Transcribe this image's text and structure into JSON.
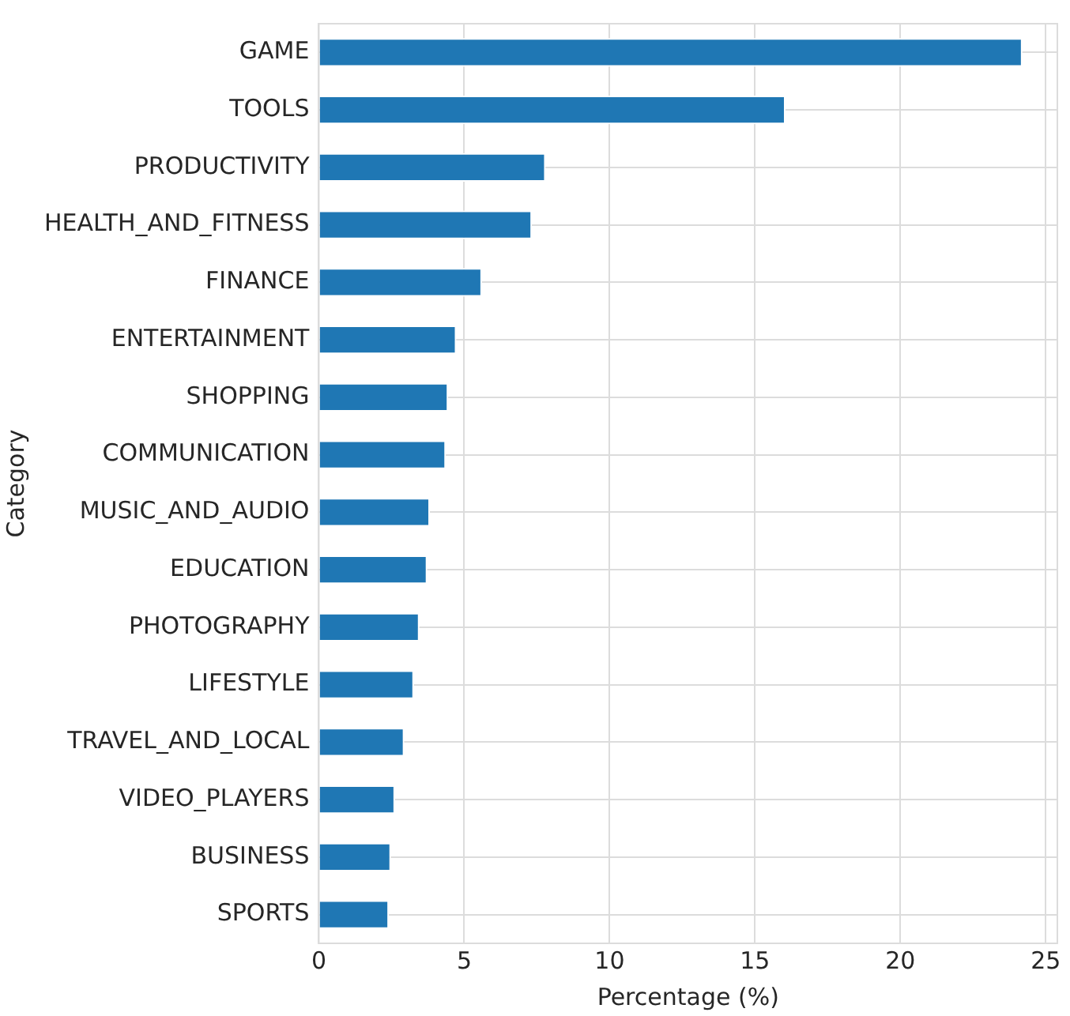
{
  "chart_data": {
    "type": "bar",
    "orientation": "horizontal",
    "xlabel": "Percentage (%)",
    "ylabel": "Category",
    "categories": [
      "GAME",
      "TOOLS",
      "PRODUCTIVITY",
      "HEALTH_AND_FITNESS",
      "FINANCE",
      "ENTERTAINMENT",
      "SHOPPING",
      "COMMUNICATION",
      "MUSIC_AND_AUDIO",
      "EDUCATION",
      "PHOTOGRAPHY",
      "LIFESTYLE",
      "TRAVEL_AND_LOCAL",
      "VIDEO_PLAYERS",
      "BUSINESS",
      "SPORTS"
    ],
    "values": [
      24.2,
      16.05,
      7.8,
      7.33,
      5.61,
      4.73,
      4.45,
      4.37,
      3.82,
      3.73,
      3.46,
      3.27,
      2.94,
      2.62,
      2.48,
      2.41
    ],
    "color": "#1f77b4",
    "xlim": [
      0,
      25.4
    ],
    "xticks": [
      0,
      5,
      10,
      15,
      20,
      25
    ],
    "grid": true,
    "legend": false
  }
}
